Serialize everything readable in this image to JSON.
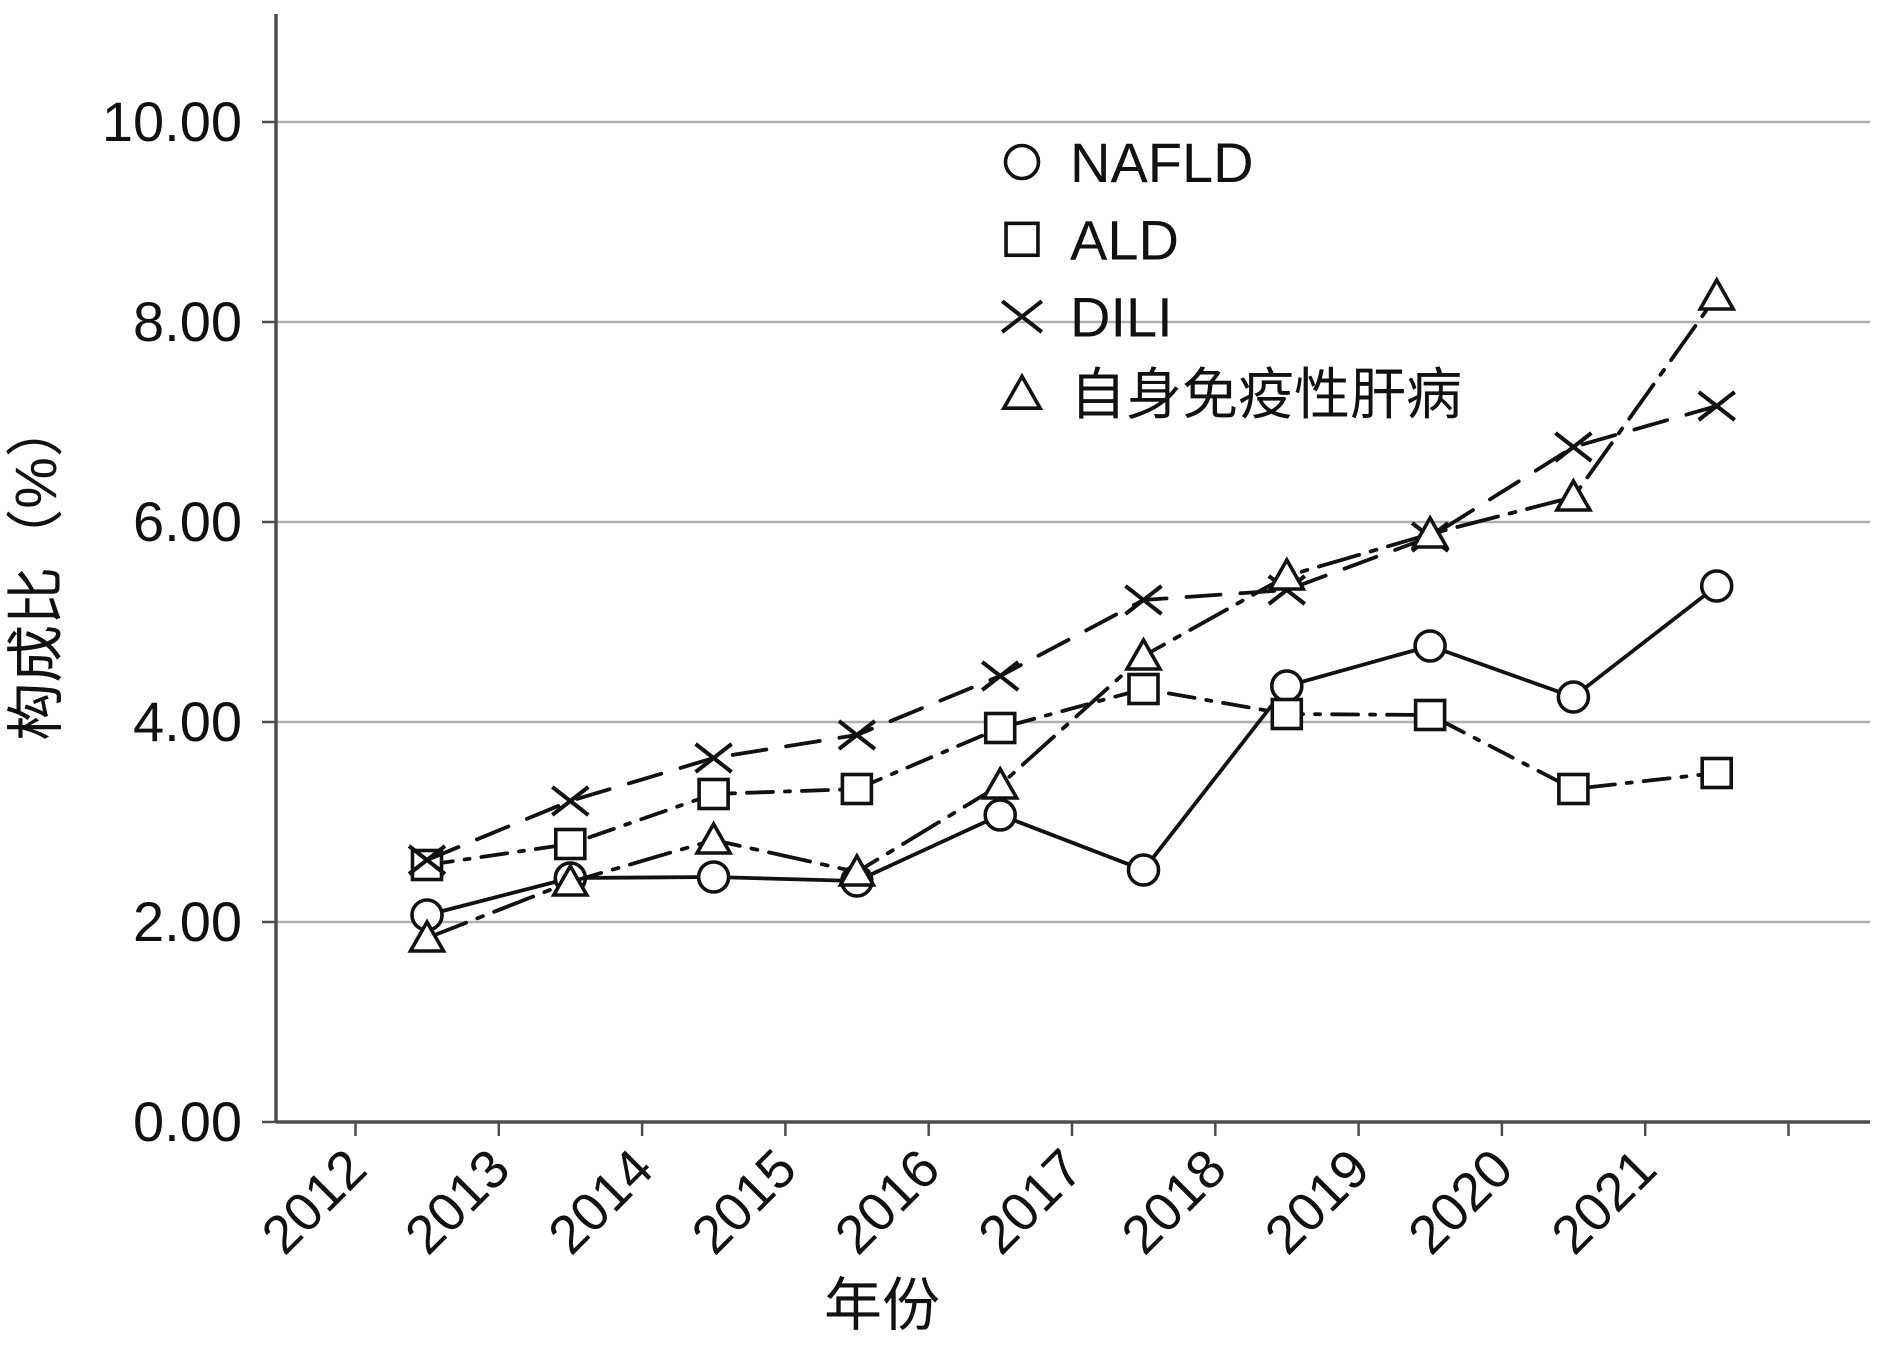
{
  "figure": {
    "background_color": "#ffffff",
    "line_color": "#111111",
    "grid_color": "#b0b0b0",
    "axis_color": "#4d4d4d"
  },
  "chart_data": {
    "type": "line",
    "title": "",
    "xlabel": "年份",
    "ylabel": "构成比（%）",
    "categories": [
      "2012",
      "2013",
      "2014",
      "2015",
      "2016",
      "2017",
      "2018",
      "2019",
      "2020",
      "2021"
    ],
    "ylim": [
      0,
      10
    ],
    "y_tick_step": 2,
    "y_tick_labels": [
      "0.00",
      "2.00",
      "4.00",
      "6.00",
      "8.00",
      "10.00"
    ],
    "grid": "horizontal",
    "legend_position": "top-center-inside",
    "series": [
      {
        "name": "NAFLD",
        "marker": "circle",
        "line_style": "solid",
        "values": [
          2.07,
          2.44,
          2.45,
          2.41,
          3.07,
          2.52,
          4.36,
          4.76,
          4.25,
          5.36
        ]
      },
      {
        "name": "ALD",
        "marker": "square",
        "line_style": "dash-dot",
        "values": [
          2.57,
          2.78,
          3.28,
          3.33,
          3.94,
          4.33,
          4.08,
          4.07,
          3.33,
          3.49
        ]
      },
      {
        "name": "DILI",
        "marker": "x",
        "line_style": "dashed",
        "values": [
          2.62,
          3.21,
          3.64,
          3.87,
          4.46,
          5.22,
          5.32,
          5.85,
          6.75,
          7.16
        ]
      },
      {
        "name": "自身免疫性肝病",
        "marker": "triangle",
        "line_style": "dash-dot-long",
        "values": [
          1.84,
          2.4,
          2.82,
          2.5,
          3.37,
          4.66,
          5.46,
          5.88,
          6.25,
          8.26
        ]
      }
    ]
  }
}
